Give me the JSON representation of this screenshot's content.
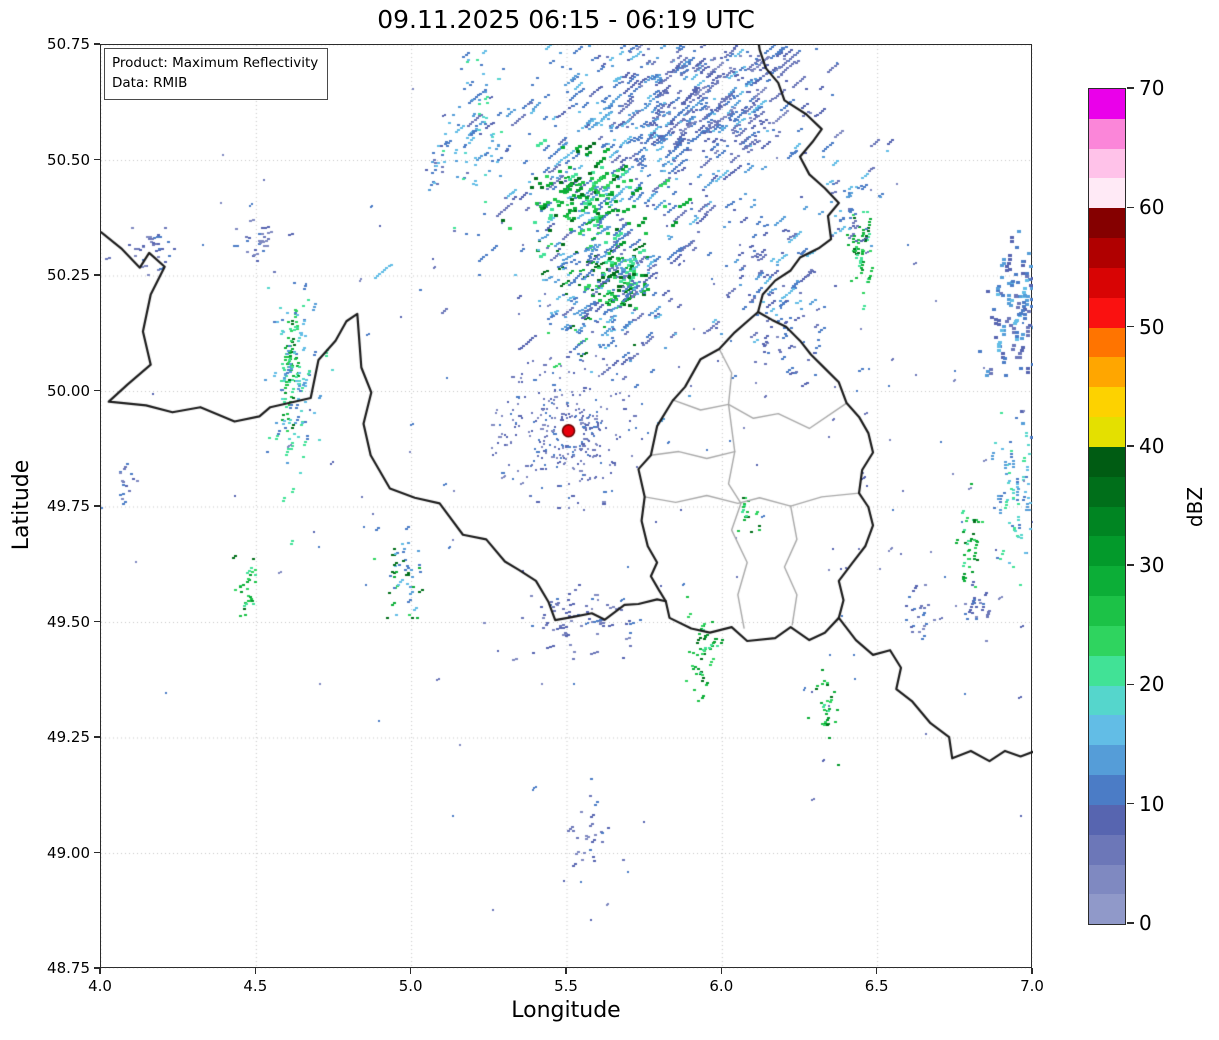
{
  "chart_data": {
    "type": "heatmap",
    "title": "09.11.2025 06:15 - 06:19 UTC",
    "annotation": {
      "line1": "Product: Maximum Reflectivity",
      "line2": "Data: RMIB"
    },
    "xlabel": "Longitude",
    "ylabel": "Latitude",
    "xlim": [
      4.0,
      7.0
    ],
    "ylim": [
      48.75,
      50.75
    ],
    "xticks": [
      4.0,
      4.5,
      5.0,
      5.5,
      6.0,
      6.5,
      7.0
    ],
    "xtick_labels": [
      "4.0",
      "4.5",
      "5.0",
      "5.5",
      "6.0",
      "6.5",
      "7.0"
    ],
    "yticks": [
      48.75,
      49.0,
      49.25,
      49.5,
      49.75,
      50.0,
      50.25,
      50.5,
      50.75
    ],
    "ytick_labels": [
      "48.75",
      "49.00",
      "49.25",
      "49.50",
      "49.75",
      "50.00",
      "50.25",
      "50.50",
      "50.75"
    ],
    "grid": "dotted",
    "colorbar": {
      "label": "dBZ",
      "min": 0,
      "max": 70,
      "step": 2.5,
      "tick_values": [
        0,
        10,
        20,
        30,
        40,
        50,
        60,
        70
      ],
      "colors": [
        "#9099c9",
        "#7f89c1",
        "#6c77b8",
        "#5765b0",
        "#4b7cc6",
        "#559dd8",
        "#62bde6",
        "#55d6cc",
        "#41e296",
        "#2fd45f",
        "#1cc247",
        "#0cae37",
        "#039a2b",
        "#008522",
        "#006f1a",
        "#005c13",
        "#e4e000",
        "#fdd200",
        "#ffa600",
        "#ff7400",
        "#fa1110",
        "#d80404",
        "#b00000",
        "#850000",
        "#ffeaf6",
        "#ffc2e9",
        "#fb86d9",
        "#ea00ea"
      ]
    },
    "colors": {
      "country_border": "#1a1a1a",
      "district_border": "#a8a8a8",
      "grid": "#c4c4c4",
      "radar_site_fill": "#e8000d",
      "radar_site_edge": "#6b0000",
      "background": "#ffffff"
    },
    "radar_site": {
      "lon": 5.505,
      "lat": 49.915
    },
    "palettes": {
      "blue": [
        "#4b7cc6",
        "#4b7cc6",
        "#559dd8",
        "#5765b0",
        "#6c77b8",
        "#62bde6"
      ],
      "bluecyan": [
        "#559dd8",
        "#62bde6",
        "#55d6cc",
        "#4b7cc6",
        "#41e296"
      ],
      "green": [
        "#2fd45f",
        "#0cae37",
        "#039a2b",
        "#41e296",
        "#006f1a",
        "#1cc247"
      ],
      "faint": [
        "#6c77b8",
        "#5765b0",
        "#7f89c1",
        "#4b7cc6"
      ],
      "mix": [
        "#4b7cc6",
        "#559dd8",
        "#2fd45f",
        "#0cae37",
        "#62bde6",
        "#006f1a"
      ]
    },
    "echo_clusters": [
      {
        "lon": 5.72,
        "lat": 50.52,
        "sx": 0.27,
        "sy": 0.15,
        "n": 380,
        "angle": 40,
        "size": 3,
        "len": 9,
        "palette": "blue",
        "seed": 11
      },
      {
        "lon": 5.85,
        "lat": 50.62,
        "sx": 0.17,
        "sy": 0.08,
        "n": 220,
        "angle": 40,
        "size": 3,
        "len": 7,
        "palette": "blue",
        "seed": 12
      },
      {
        "lon": 6.0,
        "lat": 50.66,
        "sx": 0.14,
        "sy": 0.08,
        "n": 150,
        "angle": 40,
        "size": 3,
        "len": 8,
        "palette": "faint",
        "seed": 13
      },
      {
        "lon": 5.56,
        "lat": 50.42,
        "sx": 0.09,
        "sy": 0.05,
        "n": 130,
        "angle": 35,
        "size": 4,
        "len": 4,
        "palette": "green",
        "seed": 14
      },
      {
        "lon": 5.67,
        "lat": 50.245,
        "sx": 0.05,
        "sy": 0.035,
        "n": 70,
        "angle": 35,
        "size": 4,
        "len": 3,
        "palette": "green",
        "seed": 15
      },
      {
        "lon": 5.56,
        "lat": 50.26,
        "sx": 0.07,
        "sy": 0.08,
        "n": 120,
        "angle": 30,
        "size": 3,
        "len": 5,
        "palette": "mix",
        "seed": 16
      },
      {
        "lon": 5.65,
        "lat": 50.2,
        "sx": 0.1,
        "sy": 0.09,
        "n": 150,
        "angle": 40,
        "size": 3,
        "len": 6,
        "palette": "blue",
        "seed": 17
      },
      {
        "lon": 6.15,
        "lat": 50.24,
        "sx": 0.09,
        "sy": 0.07,
        "n": 80,
        "angle": 40,
        "size": 3,
        "len": 6,
        "palette": "blue",
        "seed": 18
      },
      {
        "lon": 6.2,
        "lat": 50.1,
        "sx": 0.06,
        "sy": 0.04,
        "n": 40,
        "angle": 40,
        "size": 3,
        "len": 4,
        "palette": "faint",
        "seed": 19
      },
      {
        "lon": 6.44,
        "lat": 50.31,
        "sx": 0.022,
        "sy": 0.045,
        "n": 45,
        "angle": 75,
        "size": 3,
        "len": 3,
        "palette": "green",
        "seed": 20
      },
      {
        "lon": 6.4,
        "lat": 50.4,
        "sx": 0.04,
        "sy": 0.05,
        "n": 40,
        "angle": 40,
        "size": 3,
        "len": 4,
        "palette": "blue",
        "seed": 21
      },
      {
        "lon": 6.95,
        "lat": 50.17,
        "sx": 0.05,
        "sy": 0.08,
        "n": 110,
        "angle": 85,
        "size": 4,
        "len": 3,
        "palette": "blue",
        "seed": 22
      },
      {
        "lon": 6.94,
        "lat": 49.76,
        "sx": 0.035,
        "sy": 0.09,
        "n": 70,
        "angle": 85,
        "size": 3,
        "len": 3,
        "palette": "bluecyan",
        "seed": 23
      },
      {
        "lon": 6.79,
        "lat": 49.66,
        "sx": 0.02,
        "sy": 0.045,
        "n": 35,
        "angle": 70,
        "size": 3,
        "len": 3,
        "palette": "green",
        "seed": 24
      },
      {
        "lon": 6.82,
        "lat": 49.53,
        "sx": 0.02,
        "sy": 0.03,
        "n": 20,
        "angle": 70,
        "size": 3,
        "len": 3,
        "palette": "faint",
        "seed": 42
      },
      {
        "lon": 4.605,
        "lat": 50.06,
        "sx": 0.013,
        "sy": 0.065,
        "n": 60,
        "angle": 85,
        "size": 3,
        "len": 3,
        "palette": "green",
        "seed": 25
      },
      {
        "lon": 4.62,
        "lat": 50.02,
        "sx": 0.04,
        "sy": 0.1,
        "n": 100,
        "angle": 75,
        "size": 3,
        "len": 3,
        "palette": "bluecyan",
        "seed": 26
      },
      {
        "lon": 5.21,
        "lat": 50.57,
        "sx": 0.05,
        "sy": 0.08,
        "n": 75,
        "angle": 55,
        "size": 3,
        "len": 4,
        "palette": "bluecyan",
        "seed": 27
      },
      {
        "lon": 5.07,
        "lat": 50.5,
        "sx": 0.018,
        "sy": 0.03,
        "n": 20,
        "angle": 55,
        "size": 3,
        "len": 3,
        "palette": "blue",
        "seed": 28
      },
      {
        "lon": 4.18,
        "lat": 50.31,
        "sx": 0.05,
        "sy": 0.03,
        "n": 30,
        "angle": 15,
        "size": 3,
        "len": 3,
        "palette": "faint",
        "seed": 29
      },
      {
        "lon": 4.49,
        "lat": 50.33,
        "sx": 0.04,
        "sy": 0.025,
        "n": 25,
        "angle": 15,
        "size": 3,
        "len": 3,
        "palette": "faint",
        "seed": 30
      },
      {
        "lon": 5.505,
        "lat": 49.915,
        "sx": 0,
        "sy": 0,
        "ring": [
          0.045,
          0.26
        ],
        "n": 300,
        "angle": 0,
        "size": 2,
        "len": 2,
        "palette": "faint",
        "seed": 31
      },
      {
        "lon": 5.52,
        "lat": 49.5,
        "sx": 0.1,
        "sy": 0.035,
        "n": 70,
        "angle": 20,
        "size": 3,
        "len": 3,
        "palette": "faint",
        "seed": 32
      },
      {
        "lon": 5.93,
        "lat": 49.44,
        "sx": 0.025,
        "sy": 0.05,
        "n": 40,
        "angle": 60,
        "size": 3,
        "len": 3,
        "palette": "green",
        "seed": 33
      },
      {
        "lon": 6.33,
        "lat": 49.31,
        "sx": 0.02,
        "sy": 0.04,
        "n": 25,
        "angle": 60,
        "size": 3,
        "len": 3,
        "palette": "green",
        "seed": 34
      },
      {
        "lon": 4.97,
        "lat": 49.61,
        "sx": 0.03,
        "sy": 0.05,
        "n": 50,
        "angle": 45,
        "size": 3,
        "len": 3,
        "palette": "mix",
        "seed": 35
      },
      {
        "lon": 4.46,
        "lat": 49.58,
        "sx": 0.02,
        "sy": 0.035,
        "n": 25,
        "angle": 45,
        "size": 3,
        "len": 3,
        "palette": "green",
        "seed": 36
      },
      {
        "lon": 5.56,
        "lat": 49.06,
        "sx": 0.04,
        "sy": 0.06,
        "n": 25,
        "angle": 45,
        "size": 3,
        "len": 3,
        "palette": "faint",
        "seed": 37
      },
      {
        "lon": 6.62,
        "lat": 49.52,
        "sx": 0.025,
        "sy": 0.04,
        "n": 20,
        "angle": 60,
        "size": 3,
        "len": 3,
        "palette": "faint",
        "seed": 40
      },
      {
        "lon": 4.07,
        "lat": 49.81,
        "sx": 0.02,
        "sy": 0.035,
        "n": 18,
        "angle": 30,
        "size": 3,
        "len": 3,
        "palette": "faint",
        "seed": 41
      },
      {
        "lon": 6.07,
        "lat": 49.74,
        "sx": 0.02,
        "sy": 0.03,
        "n": 15,
        "angle": 60,
        "size": 3,
        "len": 2,
        "palette": "green",
        "seed": 43
      },
      {
        "lon": 5.5,
        "lat": 49.9,
        "sx": 0.8,
        "sy": 0.55,
        "n": 150,
        "angle": 35,
        "size": 2,
        "len": 3,
        "palette": "faint",
        "seed": 38
      },
      {
        "lon": 6.6,
        "lat": 49.9,
        "sx": 0.35,
        "sy": 0.35,
        "n": 60,
        "angle": 35,
        "size": 2,
        "len": 3,
        "palette": "faint",
        "seed": 39
      }
    ],
    "borders": {
      "country": [
        [
          [
            4.0,
            50.345
          ],
          [
            4.065,
            50.31
          ],
          [
            4.125,
            50.268
          ],
          [
            4.155,
            50.3
          ],
          [
            4.205,
            50.27
          ],
          [
            4.16,
            50.21
          ],
          [
            4.135,
            50.13
          ],
          [
            4.16,
            50.058
          ],
          [
            4.085,
            50.015
          ],
          [
            4.025,
            49.978
          ],
          [
            4.145,
            49.97
          ],
          [
            4.23,
            49.955
          ],
          [
            4.32,
            49.966
          ],
          [
            4.43,
            49.935
          ],
          [
            4.51,
            49.946
          ],
          [
            4.545,
            49.966
          ],
          [
            4.675,
            49.986
          ],
          [
            4.7,
            50.068
          ],
          [
            4.755,
            50.11
          ],
          [
            4.79,
            50.152
          ],
          [
            4.825,
            50.168
          ],
          [
            4.838,
            50.052
          ],
          [
            4.87,
            49.998
          ],
          [
            4.845,
            49.93
          ],
          [
            4.868,
            49.862
          ],
          [
            4.93,
            49.79
          ],
          [
            5.01,
            49.77
          ],
          [
            5.09,
            49.758
          ],
          [
            5.165,
            49.69
          ],
          [
            5.24,
            49.68
          ],
          [
            5.3,
            49.632
          ],
          [
            5.345,
            49.614
          ],
          [
            5.4,
            49.59
          ],
          [
            5.44,
            49.545
          ],
          [
            5.462,
            49.505
          ],
          [
            5.52,
            49.512
          ],
          [
            5.58,
            49.52
          ],
          [
            5.622,
            49.506
          ],
          [
            5.685,
            49.538
          ],
          [
            5.73,
            49.54
          ],
          [
            5.79,
            49.55
          ],
          [
            5.818,
            49.546
          ]
        ],
        [
          [
            6.115,
            50.172
          ],
          [
            6.04,
            50.128
          ],
          [
            5.99,
            50.092
          ],
          [
            5.93,
            50.07
          ],
          [
            5.88,
            50.01
          ],
          [
            5.84,
            49.98
          ],
          [
            5.79,
            49.925
          ],
          [
            5.77,
            49.862
          ],
          [
            5.73,
            49.832
          ],
          [
            5.75,
            49.772
          ],
          [
            5.74,
            49.72
          ],
          [
            5.76,
            49.665
          ],
          [
            5.79,
            49.63
          ],
          [
            5.77,
            49.6
          ],
          [
            5.796,
            49.57
          ],
          [
            5.818,
            49.546
          ],
          [
            5.83,
            49.51
          ],
          [
            5.9,
            49.487
          ],
          [
            5.96,
            49.478
          ],
          [
            6.03,
            49.49
          ],
          [
            6.08,
            49.46
          ],
          [
            6.17,
            49.466
          ],
          [
            6.22,
            49.49
          ],
          [
            6.28,
            49.462
          ],
          [
            6.33,
            49.478
          ],
          [
            6.375,
            49.51
          ],
          [
            6.39,
            49.548
          ],
          [
            6.375,
            49.59
          ],
          [
            6.42,
            49.63
          ],
          [
            6.46,
            49.665
          ],
          [
            6.485,
            49.71
          ],
          [
            6.47,
            49.75
          ],
          [
            6.44,
            49.78
          ],
          [
            6.45,
            49.83
          ],
          [
            6.485,
            49.868
          ],
          [
            6.47,
            49.91
          ],
          [
            6.44,
            49.945
          ],
          [
            6.4,
            49.975
          ],
          [
            6.375,
            50.02
          ],
          [
            6.33,
            50.05
          ],
          [
            6.285,
            50.08
          ],
          [
            6.25,
            50.11
          ],
          [
            6.205,
            50.14
          ],
          [
            6.16,
            50.155
          ],
          [
            6.115,
            50.172
          ]
        ],
        [
          [
            6.115,
            50.172
          ],
          [
            6.13,
            50.21
          ],
          [
            6.17,
            50.24
          ],
          [
            6.22,
            50.262
          ],
          [
            6.25,
            50.29
          ],
          [
            6.31,
            50.31
          ],
          [
            6.35,
            50.33
          ],
          [
            6.34,
            50.38
          ],
          [
            6.375,
            50.408
          ],
          [
            6.33,
            50.44
          ],
          [
            6.28,
            50.47
          ],
          [
            6.25,
            50.508
          ],
          [
            6.29,
            50.54
          ],
          [
            6.32,
            50.568
          ],
          [
            6.27,
            50.6
          ],
          [
            6.2,
            50.63
          ],
          [
            6.18,
            50.668
          ],
          [
            6.14,
            50.7
          ],
          [
            6.12,
            50.74
          ],
          [
            6.118,
            50.75
          ]
        ],
        [
          [
            6.375,
            49.51
          ],
          [
            6.43,
            49.462
          ],
          [
            6.485,
            49.43
          ],
          [
            6.54,
            49.44
          ],
          [
            6.575,
            49.402
          ],
          [
            6.56,
            49.356
          ],
          [
            6.61,
            49.33
          ],
          [
            6.67,
            49.282
          ],
          [
            6.73,
            49.252
          ],
          [
            6.74,
            49.206
          ],
          [
            6.8,
            49.222
          ],
          [
            6.86,
            49.2
          ],
          [
            6.91,
            49.222
          ],
          [
            6.96,
            49.21
          ],
          [
            7.0,
            49.22
          ]
        ]
      ],
      "district": [
        [
          [
            5.84,
            49.982
          ],
          [
            5.93,
            49.96
          ],
          [
            6.02,
            49.972
          ],
          [
            6.1,
            49.942
          ],
          [
            6.18,
            49.952
          ],
          [
            6.28,
            49.92
          ],
          [
            6.4,
            49.975
          ]
        ],
        [
          [
            5.75,
            49.772
          ],
          [
            5.85,
            49.76
          ],
          [
            5.95,
            49.775
          ],
          [
            6.05,
            49.758
          ],
          [
            6.12,
            49.77
          ],
          [
            6.22,
            49.752
          ],
          [
            6.32,
            49.772
          ],
          [
            6.44,
            49.78
          ]
        ],
        [
          [
            6.02,
            49.972
          ],
          [
            6.04,
            49.87
          ],
          [
            6.02,
            49.8
          ],
          [
            6.06,
            49.758
          ],
          [
            6.03,
            49.7
          ],
          [
            6.08,
            49.63
          ],
          [
            6.05,
            49.56
          ],
          [
            6.07,
            49.488
          ]
        ],
        [
          [
            6.22,
            49.752
          ],
          [
            6.24,
            49.68
          ],
          [
            6.2,
            49.62
          ],
          [
            6.24,
            49.56
          ],
          [
            6.225,
            49.495
          ]
        ],
        [
          [
            5.77,
            49.862
          ],
          [
            5.86,
            49.87
          ],
          [
            5.95,
            49.855
          ],
          [
            6.04,
            49.87
          ]
        ],
        [
          [
            5.99,
            50.092
          ],
          [
            6.03,
            50.04
          ],
          [
            6.02,
            49.972
          ]
        ]
      ]
    }
  }
}
